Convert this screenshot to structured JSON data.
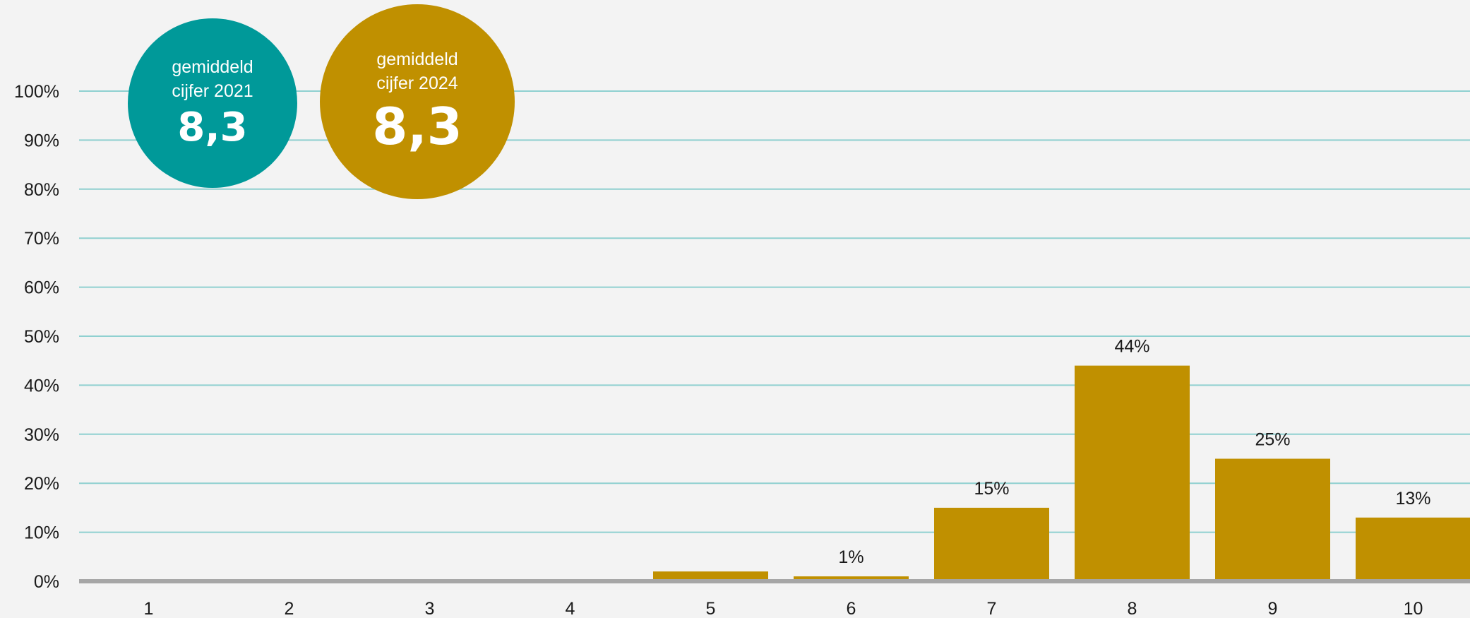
{
  "chart_data": {
    "type": "bar",
    "categories": [
      "1",
      "2",
      "3",
      "4",
      "5",
      "6",
      "7",
      "8",
      "9",
      "10"
    ],
    "values": [
      0,
      0,
      0,
      0,
      2,
      1,
      15,
      44,
      25,
      13
    ],
    "data_labels": [
      "",
      "",
      "",
      "",
      "",
      "1%",
      "15%",
      "44%",
      "25%",
      "13%"
    ],
    "y_ticks": [
      "0%",
      "10%",
      "20%",
      "30%",
      "40%",
      "50%",
      "60%",
      "70%",
      "80%",
      "90%",
      "100%"
    ],
    "ylim": [
      0,
      100
    ],
    "grid": true,
    "title": "",
    "xlabel": "",
    "ylabel": ""
  },
  "badges": [
    {
      "label": "gemiddeld cijfer 2021",
      "value": "8,3",
      "color": "#009999"
    },
    {
      "label": "gemiddeld cijfer 2024",
      "value": "8,3",
      "color": "#c09000"
    }
  ],
  "colors": {
    "bar": "#c09000",
    "grid": "#8fd0d0",
    "axis": "#a6a6a6",
    "background": "#f3f3f3"
  }
}
